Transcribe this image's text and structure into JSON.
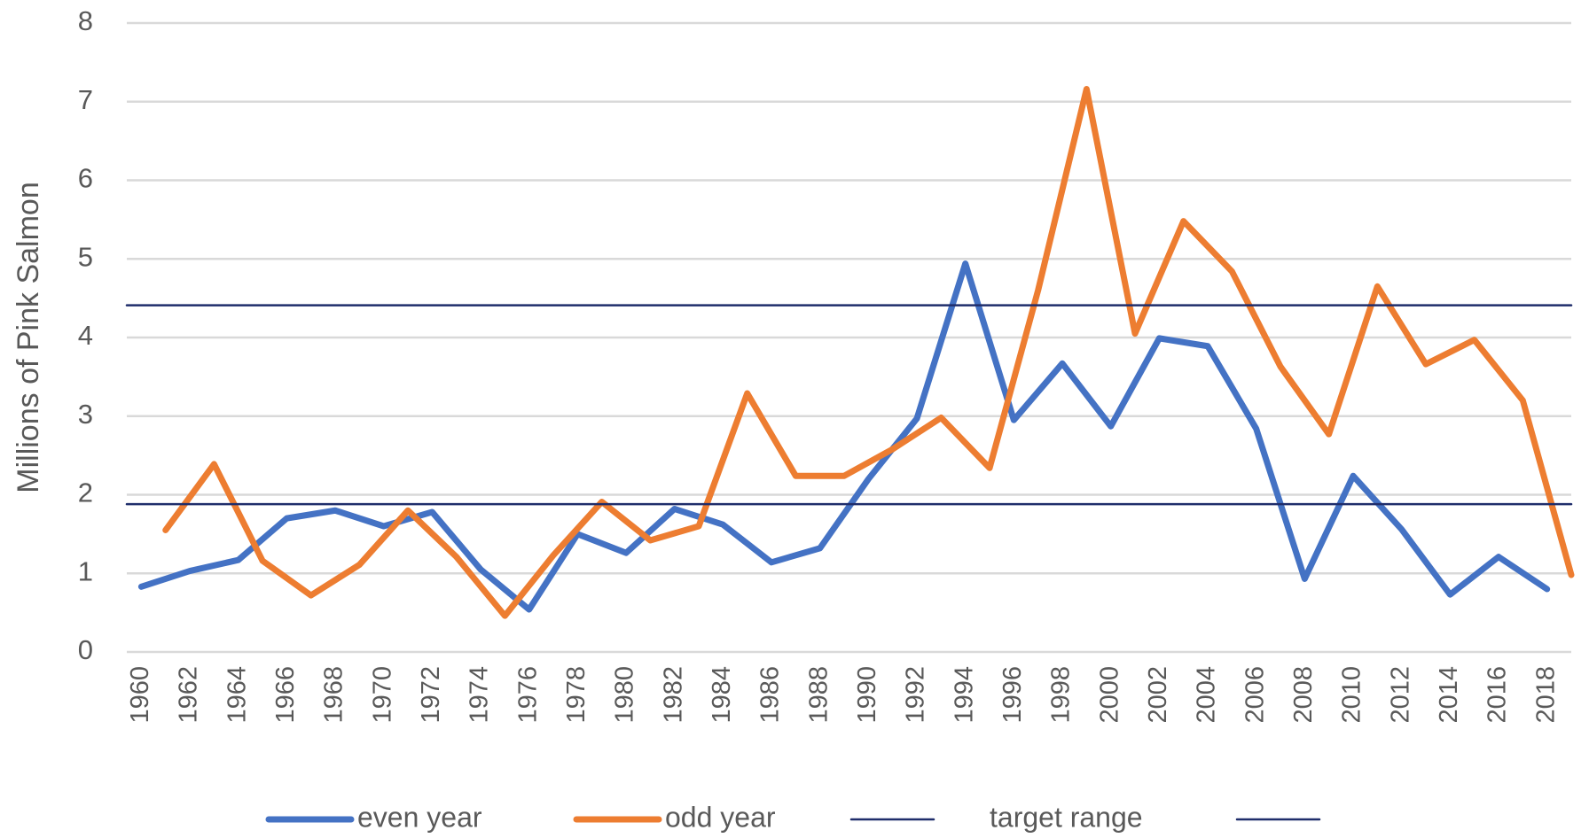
{
  "chart_data": {
    "type": "line",
    "y_label": "Millions of Pink Salmon",
    "xlim": [
      1959.4,
      2019
    ],
    "xticks": [
      1960,
      1962,
      1964,
      1966,
      1968,
      1970,
      1972,
      1974,
      1976,
      1978,
      1980,
      1982,
      1984,
      1986,
      1988,
      1990,
      1992,
      1994,
      1996,
      1998,
      2000,
      2002,
      2004,
      2006,
      2008,
      2010,
      2012,
      2014,
      2016,
      2018
    ],
    "ylim": [
      0,
      8
    ],
    "yticks": [
      0,
      1,
      2,
      3,
      4,
      5,
      6,
      7,
      8
    ],
    "grid": true,
    "series": [
      {
        "name": "even year",
        "color": "#4472c4",
        "width": 7,
        "x": [
          1960,
          1962,
          1964,
          1966,
          1968,
          1970,
          1972,
          1974,
          1976,
          1978,
          1980,
          1982,
          1984,
          1986,
          1988,
          1990,
          1992,
          1994,
          1996,
          1998,
          2000,
          2002,
          2004,
          2006,
          2008,
          2010,
          2012,
          2014,
          2016,
          2018
        ],
        "values": [
          0.83,
          1.03,
          1.17,
          1.7,
          1.8,
          1.6,
          1.78,
          1.05,
          0.54,
          1.5,
          1.26,
          1.82,
          1.62,
          1.14,
          1.32,
          2.2,
          2.97,
          4.94,
          2.95,
          3.67,
          2.87,
          3.99,
          3.89,
          2.84,
          0.93,
          2.24,
          1.56,
          0.73,
          1.21,
          0.8
        ]
      },
      {
        "name": "odd year",
        "color": "#ed7d31",
        "width": 7,
        "x": [
          1961,
          1963,
          1965,
          1967,
          1969,
          1971,
          1973,
          1975,
          1977,
          1979,
          1981,
          1983,
          1985,
          1987,
          1989,
          1991,
          1993,
          1995,
          1997,
          1999,
          2001,
          2003,
          2005,
          2007,
          2009,
          2011,
          2013,
          2015,
          2017,
          2019
        ],
        "values": [
          1.55,
          2.39,
          1.16,
          0.72,
          1.11,
          1.8,
          1.21,
          0.46,
          1.23,
          1.91,
          1.42,
          1.6,
          3.29,
          2.24,
          2.24,
          2.58,
          2.98,
          2.34,
          4.6,
          7.16,
          4.05,
          5.48,
          4.84,
          3.63,
          2.77,
          4.65,
          3.66,
          3.97,
          3.2,
          0.98
        ]
      },
      {
        "name": "target range",
        "color": "#1f2d6b",
        "width": 2.5,
        "x": [
          1959.4,
          2019
        ],
        "values": [
          4.41,
          4.41
        ]
      },
      {
        "color": "#1f2d6b",
        "width": 2.5,
        "x": [
          1959.4,
          2019
        ],
        "values": [
          1.88,
          1.88
        ]
      }
    ]
  }
}
